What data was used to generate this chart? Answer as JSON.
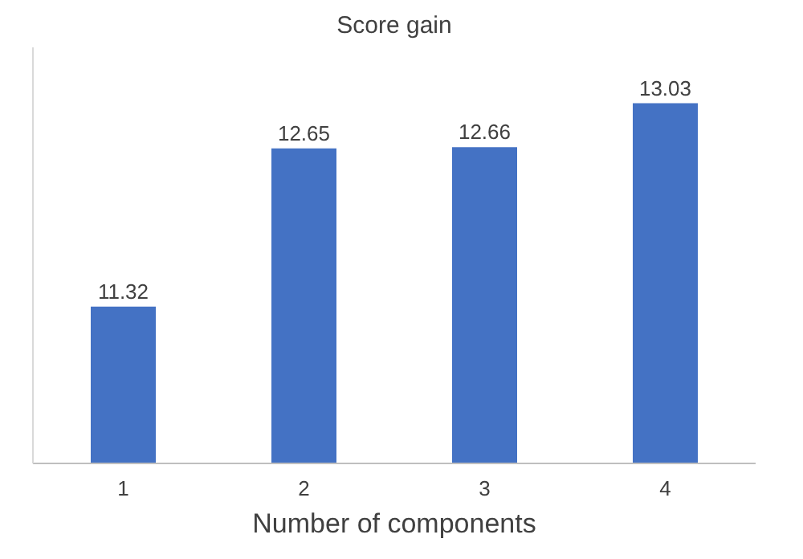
{
  "chart_data": {
    "type": "bar",
    "title": "Score gain",
    "xlabel": "Number of components",
    "categories": [
      "1",
      "2",
      "3",
      "4"
    ],
    "values": [
      11.32,
      12.65,
      12.66,
      13.03
    ],
    "color": "#4472c4",
    "ylim": [
      10,
      13.5
    ],
    "data_labels": true,
    "tick_labels": "x"
  }
}
